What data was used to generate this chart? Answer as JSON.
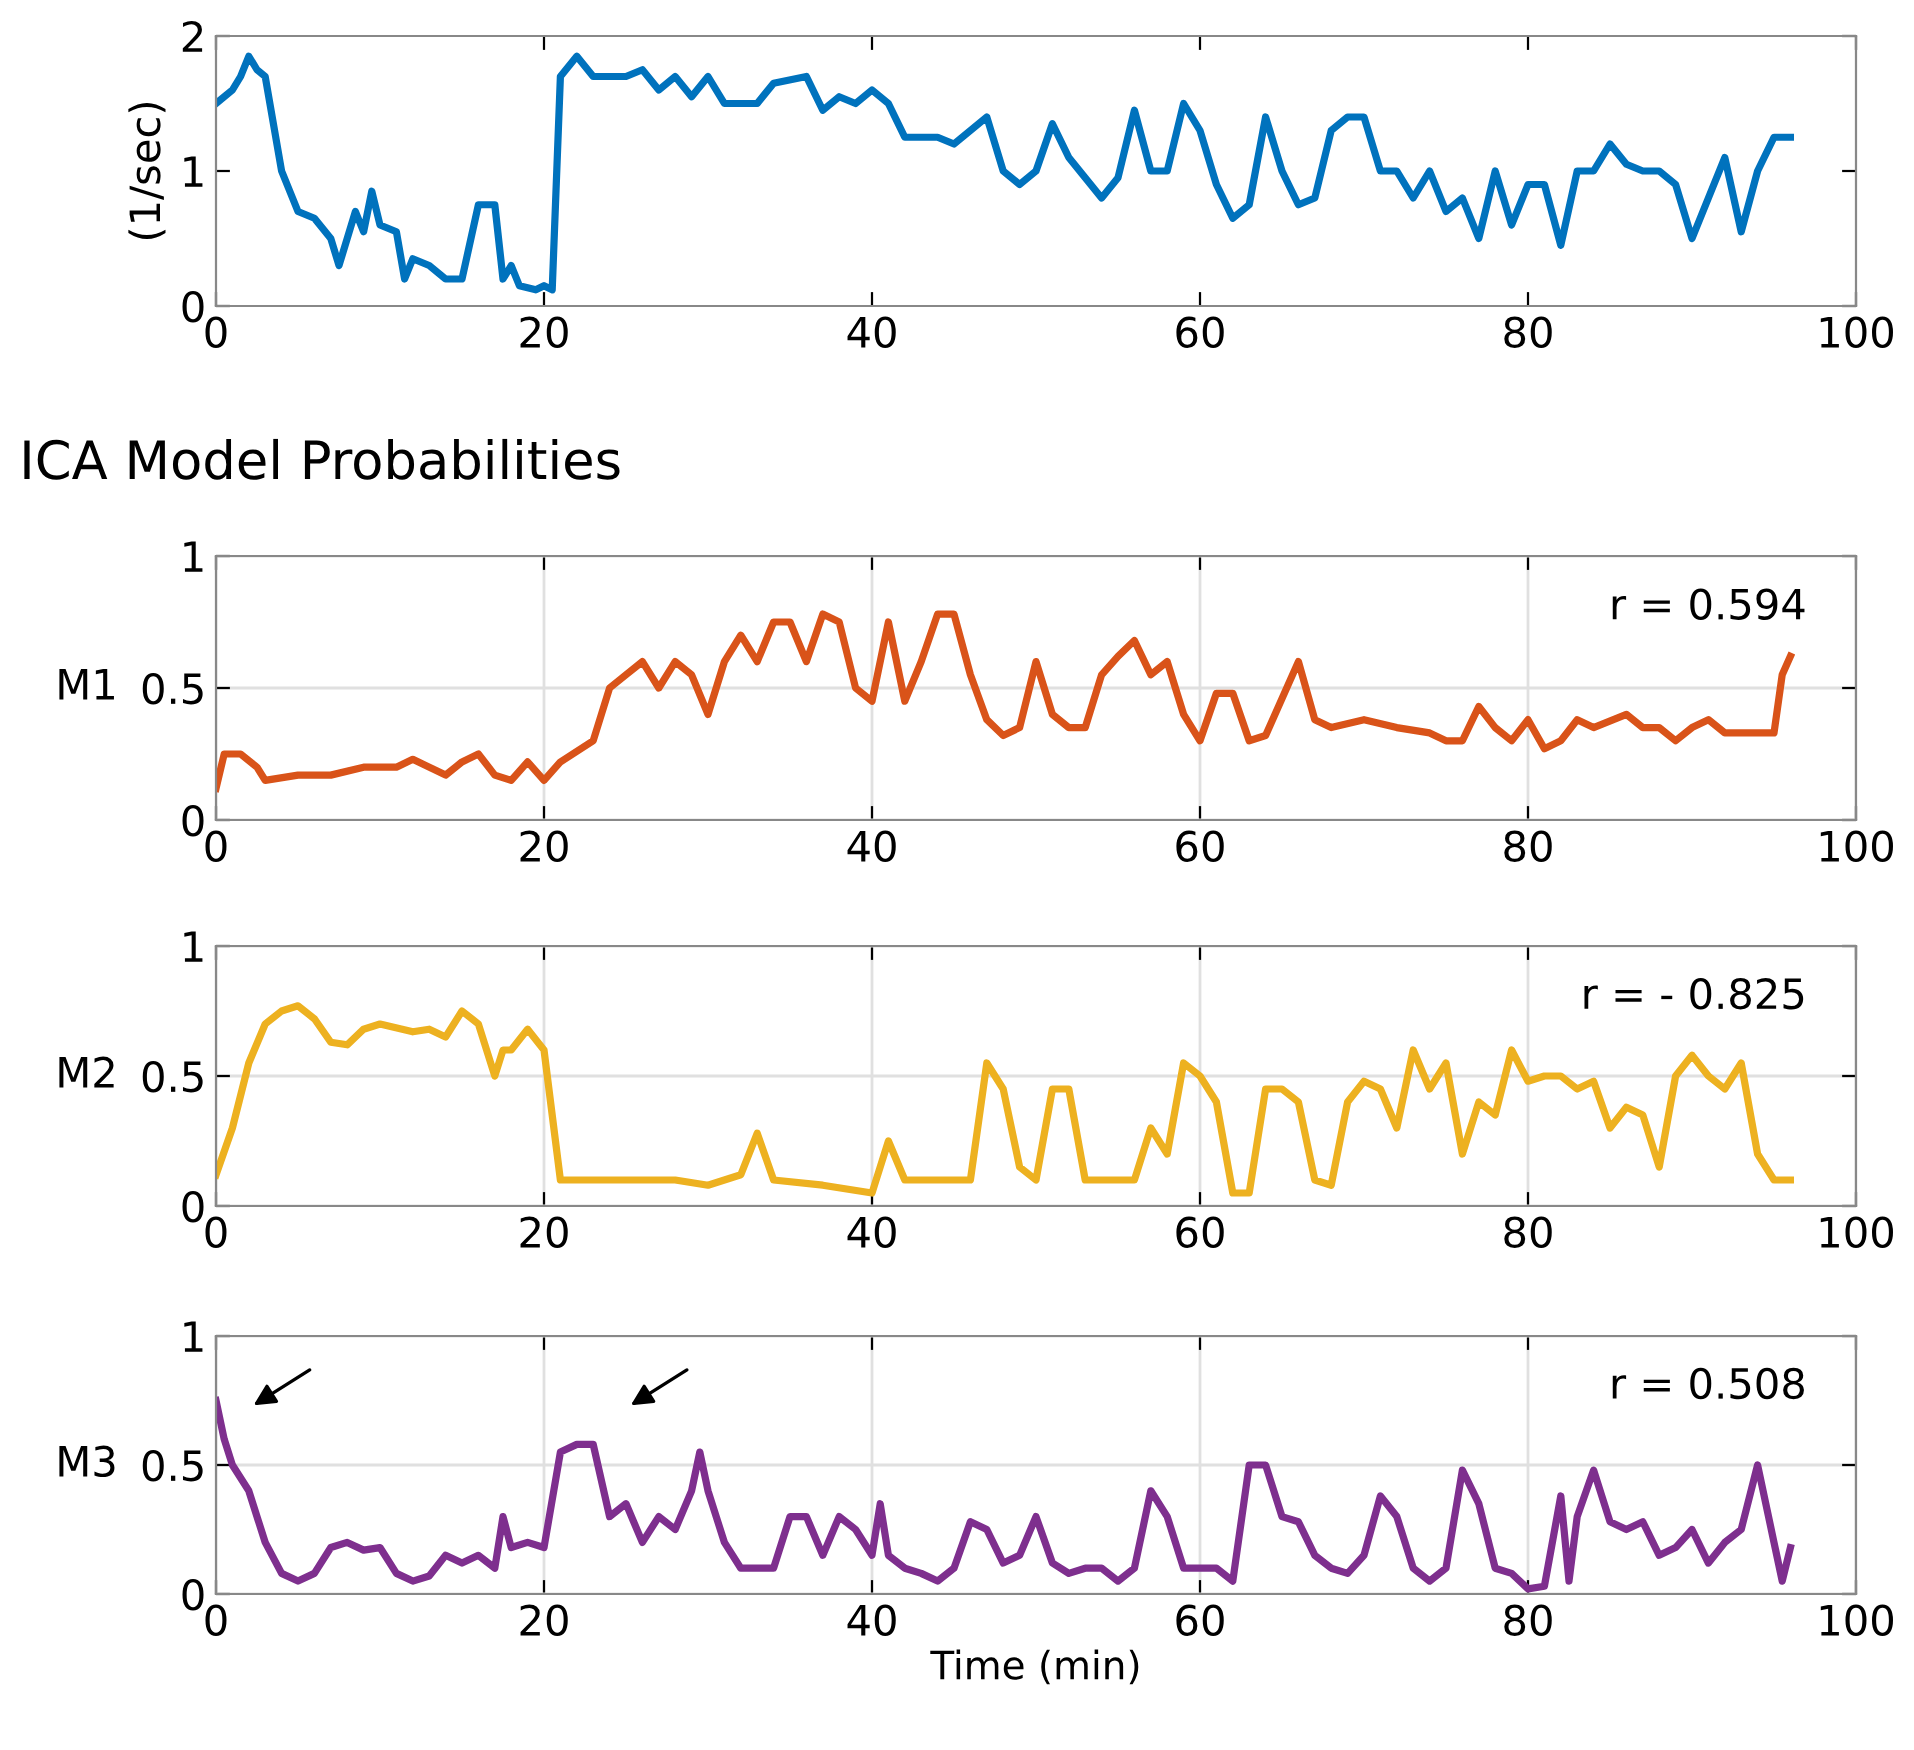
{
  "chart_data": [
    {
      "type": "line",
      "ylabel": "(1/sec)",
      "xlim": [
        0,
        100
      ],
      "xticks": [
        0,
        20,
        40,
        60,
        80,
        100
      ],
      "ylim": [
        0,
        2
      ],
      "yticks": [
        0,
        1,
        2
      ],
      "grid": false,
      "series": [
        {
          "color": "#0072bd",
          "x": [
            0,
            1,
            1.5,
            2,
            2.5,
            3,
            4,
            5,
            6,
            7,
            7.5,
            8,
            8.5,
            9,
            9.5,
            10,
            11,
            11.5,
            12,
            13,
            14,
            15,
            16,
            17,
            17.5,
            18,
            18.5,
            19.5,
            20,
            20.5,
            21,
            22,
            23,
            25,
            26,
            27,
            28,
            29,
            30,
            31,
            33,
            34,
            36,
            37,
            38,
            39,
            40,
            41,
            42,
            44,
            45,
            46,
            47,
            48,
            49,
            50,
            51,
            52,
            53,
            54,
            55,
            56,
            57,
            58,
            59,
            60,
            61,
            62,
            63,
            64,
            65,
            66,
            67,
            68,
            69,
            70,
            71,
            72,
            73,
            74,
            75,
            76,
            77,
            78,
            79,
            80,
            81,
            82,
            83,
            84,
            85,
            86,
            87,
            88,
            89,
            90,
            91,
            92,
            93,
            94,
            95,
            96
          ],
          "values": [
            1.5,
            1.6,
            1.7,
            1.85,
            1.75,
            1.7,
            1.0,
            0.7,
            0.65,
            0.5,
            0.3,
            0.5,
            0.7,
            0.55,
            0.85,
            0.6,
            0.55,
            0.2,
            0.35,
            0.3,
            0.2,
            0.2,
            0.75,
            0.75,
            0.2,
            0.3,
            0.15,
            0.12,
            0.15,
            0.12,
            1.7,
            1.85,
            1.7,
            1.7,
            1.75,
            1.6,
            1.7,
            1.55,
            1.7,
            1.5,
            1.5,
            1.65,
            1.7,
            1.45,
            1.55,
            1.5,
            1.6,
            1.5,
            1.25,
            1.25,
            1.2,
            1.3,
            1.4,
            1.0,
            0.9,
            1.0,
            1.35,
            1.1,
            0.95,
            0.8,
            0.95,
            1.45,
            1.0,
            1.0,
            1.5,
            1.3,
            0.9,
            0.65,
            0.75,
            1.4,
            1.0,
            0.75,
            0.8,
            1.3,
            1.4,
            1.4,
            1.0,
            1.0,
            0.8,
            1.0,
            0.7,
            0.8,
            0.5,
            1.0,
            0.6,
            0.9,
            0.9,
            0.45,
            1.0,
            1.0,
            1.2,
            1.05,
            1.0,
            1.0,
            0.9,
            0.5,
            0.8,
            1.1,
            0.55,
            1.0,
            1.25,
            1.25
          ]
        }
      ]
    },
    {
      "type": "line",
      "title": "ICA Model Probabilities",
      "ylabel": "M1",
      "xlim": [
        0,
        100
      ],
      "xticks": [
        0,
        20,
        40,
        60,
        80,
        100
      ],
      "ylim": [
        0,
        1
      ],
      "yticks": [
        0,
        0.5,
        1
      ],
      "grid": true,
      "annotations": [
        "r = 0.594"
      ],
      "series": [
        {
          "color": "#d95319",
          "x": [
            0,
            0.5,
            1.5,
            2.5,
            3,
            5,
            7,
            9,
            11,
            12,
            14,
            15,
            16,
            17,
            18,
            19,
            20,
            21,
            23,
            24,
            25,
            26,
            27,
            28,
            29,
            30,
            31,
            32,
            33,
            34,
            35,
            36,
            37,
            38,
            39,
            40,
            41,
            42,
            43,
            44,
            45,
            46,
            47,
            48,
            49,
            50,
            51,
            52,
            53,
            54,
            55,
            56,
            57,
            58,
            59,
            60,
            61,
            62,
            63,
            64,
            66,
            67,
            68,
            70,
            72,
            74,
            75,
            76,
            77,
            78,
            79,
            80,
            81,
            82,
            83,
            84,
            86,
            87,
            88,
            89,
            90,
            91,
            92,
            94,
            95,
            95.5,
            96
          ],
          "values": [
            0.12,
            0.25,
            0.25,
            0.2,
            0.15,
            0.17,
            0.17,
            0.2,
            0.2,
            0.23,
            0.17,
            0.22,
            0.25,
            0.17,
            0.15,
            0.22,
            0.15,
            0.22,
            0.3,
            0.5,
            0.55,
            0.6,
            0.5,
            0.6,
            0.55,
            0.4,
            0.6,
            0.7,
            0.6,
            0.75,
            0.75,
            0.6,
            0.78,
            0.75,
            0.5,
            0.45,
            0.75,
            0.45,
            0.6,
            0.78,
            0.78,
            0.55,
            0.38,
            0.32,
            0.35,
            0.6,
            0.4,
            0.35,
            0.35,
            0.55,
            0.62,
            0.68,
            0.55,
            0.6,
            0.4,
            0.3,
            0.48,
            0.48,
            0.3,
            0.32,
            0.6,
            0.38,
            0.35,
            0.38,
            0.35,
            0.33,
            0.3,
            0.3,
            0.43,
            0.35,
            0.3,
            0.38,
            0.27,
            0.3,
            0.38,
            0.35,
            0.4,
            0.35,
            0.35,
            0.3,
            0.35,
            0.38,
            0.33,
            0.33,
            0.33,
            0.55,
            0.62
          ]
        }
      ]
    },
    {
      "type": "line",
      "ylabel": "M2",
      "xlim": [
        0,
        100
      ],
      "xticks": [
        0,
        20,
        40,
        60,
        80,
        100
      ],
      "ylim": [
        0,
        1
      ],
      "yticks": [
        0,
        0.5,
        1
      ],
      "grid": true,
      "annotations": [
        "r = - 0.825"
      ],
      "series": [
        {
          "color": "#edb120",
          "x": [
            0,
            1,
            2,
            3,
            4,
            5,
            6,
            7,
            8,
            9,
            10,
            12,
            13,
            14,
            15,
            16,
            17,
            17.5,
            18,
            19,
            20,
            21,
            22,
            25,
            28,
            30,
            32,
            33,
            34,
            37,
            40,
            41,
            42,
            46,
            47,
            48,
            49,
            50,
            51,
            52,
            53,
            56,
            57,
            58,
            59,
            60,
            61,
            62,
            63,
            64,
            65,
            66,
            67,
            68,
            69,
            70,
            71,
            72,
            73,
            74,
            75,
            76,
            77,
            78,
            79,
            80,
            81,
            82,
            83,
            84,
            85,
            86,
            87,
            88,
            89,
            90,
            91,
            92,
            93,
            94,
            95,
            96
          ],
          "values": [
            0.12,
            0.3,
            0.55,
            0.7,
            0.75,
            0.77,
            0.72,
            0.63,
            0.62,
            0.68,
            0.7,
            0.67,
            0.68,
            0.65,
            0.75,
            0.7,
            0.5,
            0.6,
            0.6,
            0.68,
            0.6,
            0.1,
            0.1,
            0.1,
            0.1,
            0.08,
            0.12,
            0.28,
            0.1,
            0.08,
            0.05,
            0.25,
            0.1,
            0.1,
            0.55,
            0.45,
            0.15,
            0.1,
            0.45,
            0.45,
            0.1,
            0.1,
            0.3,
            0.2,
            0.55,
            0.5,
            0.4,
            0.05,
            0.05,
            0.45,
            0.45,
            0.4,
            0.1,
            0.08,
            0.4,
            0.48,
            0.45,
            0.3,
            0.6,
            0.45,
            0.55,
            0.2,
            0.4,
            0.35,
            0.6,
            0.48,
            0.5,
            0.5,
            0.45,
            0.48,
            0.3,
            0.38,
            0.35,
            0.15,
            0.5,
            0.58,
            0.5,
            0.45,
            0.55,
            0.2,
            0.1,
            0.1
          ]
        }
      ]
    },
    {
      "type": "line",
      "ylabel": "M3",
      "xlabel": "Time (min)",
      "xlim": [
        0,
        100
      ],
      "xticks": [
        0,
        20,
        40,
        60,
        80,
        100
      ],
      "ylim": [
        0,
        1
      ],
      "yticks": [
        0,
        0.5,
        1
      ],
      "grid": true,
      "annotations": [
        "r = 0.508"
      ],
      "series": [
        {
          "color": "#7e2f8e",
          "x": [
            0,
            0.5,
            1,
            2,
            3,
            4,
            5,
            6,
            7,
            8,
            9,
            10,
            11,
            12,
            13,
            14,
            15,
            16,
            17,
            17.5,
            18,
            19,
            20,
            21,
            22,
            23,
            24,
            25,
            26,
            27,
            28,
            29,
            29.5,
            30,
            31,
            32,
            33,
            34,
            35,
            36,
            37,
            38,
            39,
            40,
            40.5,
            41,
            42,
            43,
            44,
            45,
            46,
            47,
            48,
            49,
            50,
            51,
            52,
            53,
            54,
            55,
            56,
            57,
            58,
            59,
            60,
            61,
            62,
            63,
            64,
            65,
            66,
            67,
            68,
            69,
            70,
            71,
            72,
            73,
            74,
            75,
            76,
            77,
            78,
            79,
            80,
            81,
            82,
            82.5,
            83,
            84,
            85,
            86,
            87,
            88,
            89,
            90,
            91,
            92,
            93,
            94,
            95,
            95.5,
            96
          ],
          "values": [
            0.75,
            0.6,
            0.5,
            0.4,
            0.2,
            0.08,
            0.05,
            0.08,
            0.18,
            0.2,
            0.17,
            0.18,
            0.08,
            0.05,
            0.07,
            0.15,
            0.12,
            0.15,
            0.1,
            0.3,
            0.18,
            0.2,
            0.18,
            0.55,
            0.58,
            0.58,
            0.3,
            0.35,
            0.2,
            0.3,
            0.25,
            0.4,
            0.55,
            0.4,
            0.2,
            0.1,
            0.1,
            0.1,
            0.3,
            0.3,
            0.15,
            0.3,
            0.25,
            0.15,
            0.35,
            0.15,
            0.1,
            0.08,
            0.05,
            0.1,
            0.28,
            0.25,
            0.12,
            0.15,
            0.3,
            0.12,
            0.08,
            0.1,
            0.1,
            0.05,
            0.1,
            0.4,
            0.3,
            0.1,
            0.1,
            0.1,
            0.05,
            0.5,
            0.5,
            0.3,
            0.28,
            0.15,
            0.1,
            0.08,
            0.15,
            0.38,
            0.3,
            0.1,
            0.05,
            0.1,
            0.48,
            0.35,
            0.1,
            0.08,
            0.02,
            0.03,
            0.38,
            0.05,
            0.3,
            0.48,
            0.28,
            0.25,
            0.28,
            0.15,
            0.18,
            0.25,
            0.12,
            0.2,
            0.25,
            0.5,
            0.2,
            0.05,
            0.18
          ]
        }
      ]
    }
  ]
}
